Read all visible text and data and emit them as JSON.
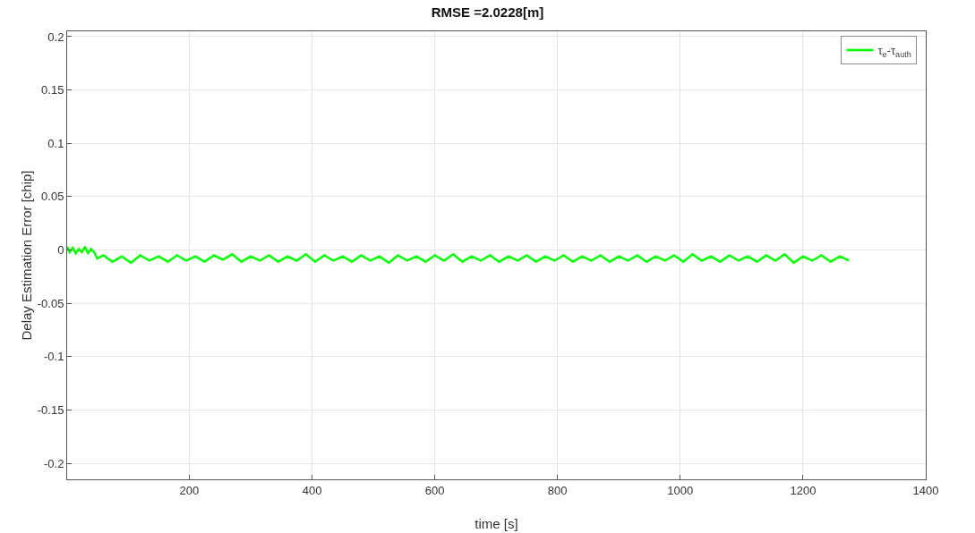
{
  "chart_data": {
    "type": "line",
    "title": "RMSE =2.0228[m]",
    "xlabel": "time [s]",
    "ylabel": "Delay Estimation Error [chip]",
    "x": [
      1,
      5,
      10,
      15,
      20,
      25,
      30,
      35,
      40,
      45,
      50,
      60,
      75,
      90,
      105,
      120,
      135,
      150,
      165,
      180,
      195,
      210,
      225,
      240,
      255,
      270,
      285,
      300,
      315,
      330,
      345,
      360,
      375,
      390,
      405,
      420,
      435,
      450,
      465,
      480,
      495,
      510,
      525,
      540,
      555,
      570,
      585,
      600,
      615,
      630,
      645,
      660,
      675,
      690,
      705,
      720,
      735,
      750,
      765,
      780,
      795,
      810,
      825,
      840,
      855,
      870,
      885,
      900,
      915,
      930,
      945,
      960,
      975,
      990,
      1005,
      1020,
      1035,
      1050,
      1065,
      1080,
      1095,
      1110,
      1125,
      1140,
      1155,
      1170,
      1185,
      1200,
      1215,
      1230,
      1245,
      1260,
      1275
    ],
    "series": [
      {
        "name": "τ$_{e}$-τ$_{auth}$",
        "color": "#00ff00",
        "values": [
          0.003,
          -0.002,
          0.002,
          -0.003,
          0.001,
          -0.002,
          0.003,
          -0.003,
          0.001,
          -0.002,
          -0.008,
          -0.005,
          -0.011,
          -0.006,
          -0.012,
          -0.005,
          -0.01,
          -0.006,
          -0.011,
          -0.005,
          -0.01,
          -0.006,
          -0.011,
          -0.005,
          -0.009,
          -0.004,
          -0.011,
          -0.006,
          -0.01,
          -0.005,
          -0.011,
          -0.006,
          -0.01,
          -0.004,
          -0.011,
          -0.005,
          -0.01,
          -0.006,
          -0.011,
          -0.005,
          -0.01,
          -0.006,
          -0.012,
          -0.005,
          -0.01,
          -0.006,
          -0.011,
          -0.005,
          -0.01,
          -0.004,
          -0.011,
          -0.006,
          -0.01,
          -0.005,
          -0.011,
          -0.006,
          -0.01,
          -0.005,
          -0.011,
          -0.006,
          -0.01,
          -0.005,
          -0.011,
          -0.006,
          -0.01,
          -0.005,
          -0.011,
          -0.006,
          -0.01,
          -0.005,
          -0.011,
          -0.006,
          -0.01,
          -0.005,
          -0.011,
          -0.004,
          -0.01,
          -0.006,
          -0.011,
          -0.005,
          -0.01,
          -0.006,
          -0.011,
          -0.005,
          -0.01,
          -0.004,
          -0.012,
          -0.006,
          -0.01,
          -0.005,
          -0.011,
          -0.006,
          -0.01
        ]
      }
    ],
    "xlim": [
      1,
      1400
    ],
    "xticks": [
      200,
      400,
      600,
      800,
      1000,
      1200,
      1400
    ],
    "ylim": [
      -0.215,
      0.205
    ],
    "yticks": [
      -0.2,
      -0.15,
      -0.1,
      -0.05,
      0,
      0.05,
      0.1,
      0.15,
      0.2
    ],
    "grid": true,
    "legend": "top right",
    "line_style": "solid"
  }
}
